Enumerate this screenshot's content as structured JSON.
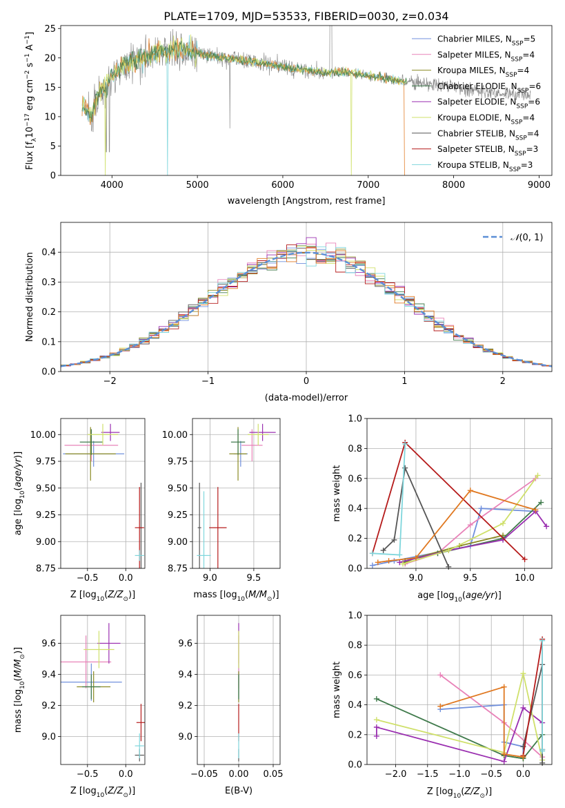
{
  "figure": {
    "title": "PLATE=1709, MJD=53533, FIBERID=0030, z=0.034"
  },
  "colors": {
    "Chabrier MILES": "#6f8fdc",
    "Salpeter MILES": "#e882b8",
    "Kroupa MILES": "#8a8a22",
    "Chabrier ELODIE": "#3f7a4b",
    "Salpeter ELODIE": "#9a2fb0",
    "Kroupa ELODIE": "#cfe06a",
    "Chabrier STELIB": "#555555",
    "Salpeter STELIB": "#b51a1a",
    "Kroupa STELIB": "#7fd6dc",
    "orange": "#e07820",
    "grey": "#8c8c8c",
    "grid": "#b0b0b0"
  },
  "chart_data": [
    {
      "id": "spectrum",
      "type": "line",
      "title": "PLATE=1709, MJD=53533, FIBERID=0030, z=0.034",
      "xlabel": "wavelength [Angstrom, rest frame]",
      "ylabel": "Flux [f_λ 10^-17 erg cm^-2 s^-1 A^-1]",
      "xlim": [
        3400,
        9150
      ],
      "ylim": [
        0,
        25.5
      ],
      "xticks": [
        4000,
        5000,
        6000,
        7000,
        8000,
        9000
      ],
      "yticks": [
        0,
        5,
        10,
        15,
        20,
        25
      ],
      "grid": false,
      "legend_position": "top-right",
      "legend": [
        "Chabrier MILES, N_SSP=5",
        "Salpeter MILES, N_SSP=4",
        "Kroupa MILES, N_SSP=4",
        "Chabrier ELODIE, N_SSP=6",
        "Salpeter ELODIE, N_SSP=6",
        "Kroupa ELODIE, N_SSP=4",
        "Chabrier STELIB, N_SSP=4",
        "Salpeter STELIB, N_SSP=3",
        "Kroupa STELIB, N_SSP=3"
      ],
      "data_envelope": {
        "x": [
          3680,
          3750,
          3850,
          4000,
          4200,
          4500,
          4800,
          5000,
          5300,
          5600,
          6000,
          6500,
          6800,
          7000,
          7400,
          7800,
          8200,
          8500,
          8800,
          8900
        ],
        "y": [
          12,
          10,
          14,
          17,
          19,
          21,
          21.5,
          20.8,
          20,
          19.5,
          18.5,
          17.5,
          17.5,
          17,
          16,
          15.5,
          14.5,
          14,
          13.8,
          13.5
        ]
      },
      "model_range": [
        3650,
        7450
      ]
    },
    {
      "id": "residual_hist",
      "type": "bar",
      "xlabel": "(data-model)/error",
      "ylabel": "Normed distribution",
      "xlim": [
        -2.5,
        2.5
      ],
      "ylim": [
        0,
        0.5
      ],
      "xticks": [
        -2,
        -1,
        0,
        1,
        2
      ],
      "yticks": [
        0.0,
        0.1,
        0.2,
        0.3,
        0.4
      ],
      "grid": true,
      "legend_position": "top-right",
      "legend": [
        "N(0,1)"
      ],
      "bin_width": 0.1
    },
    {
      "id": "age_vs_Z",
      "type": "scatter",
      "xlabel": "Z [log10(Z/Z☉)]",
      "ylabel": "age  [log10(age/yr)]",
      "xlim": [
        -0.85,
        0.25
      ],
      "ylim": [
        8.75,
        10.15
      ],
      "xticks": [
        -0.5,
        0.0
      ],
      "yticks": [
        8.75,
        9.0,
        9.25,
        9.5,
        9.75,
        10.0
      ],
      "grid": true,
      "points": [
        {
          "model": "Chabrier MILES",
          "x": -0.42,
          "xerr": 0.4,
          "y": 9.82,
          "yerr": 0.12
        },
        {
          "model": "Salpeter MILES",
          "x": -0.45,
          "xerr": 0.35,
          "y": 9.9,
          "yerr": 0.15
        },
        {
          "model": "Kroupa MILES",
          "x": -0.46,
          "xerr": 0.33,
          "y": 9.82,
          "yerr": 0.25
        },
        {
          "model": "Chabrier ELODIE",
          "x": -0.45,
          "xerr": 0.15,
          "y": 9.93,
          "yerr": 0.12
        },
        {
          "model": "Salpeter ELODIE",
          "x": -0.2,
          "xerr": 0.12,
          "y": 10.02,
          "yerr": 0.08
        },
        {
          "model": "Kroupa ELODIE",
          "x": -0.3,
          "xerr": 0.2,
          "y": 10.0,
          "yerr": 0.1
        },
        {
          "model": "Chabrier STELIB",
          "x": 0.2,
          "xerr": 0.02,
          "y": 9.13,
          "yerr": 0.42
        },
        {
          "model": "Salpeter STELIB",
          "x": 0.18,
          "xerr": 0.06,
          "y": 9.13,
          "yerr": 0.38
        },
        {
          "model": "Kroupa STELIB",
          "x": 0.18,
          "xerr": 0.06,
          "y": 8.87,
          "yerr": 0.05
        }
      ]
    },
    {
      "id": "age_vs_mass",
      "type": "scatter",
      "xlabel": "mass [log10(M/M☉)]",
      "ylabel": "",
      "xlim": [
        8.8,
        9.8
      ],
      "ylim": [
        8.75,
        10.15
      ],
      "xticks": [
        9.0,
        9.5
      ],
      "yticks": [
        8.75,
        9.0,
        9.25,
        9.5,
        9.75,
        10.0
      ],
      "grid": true,
      "points": [
        {
          "model": "Chabrier MILES",
          "x": 9.35,
          "xerr": 0.08,
          "y": 9.82,
          "yerr": 0.12
        },
        {
          "model": "Salpeter MILES",
          "x": 9.48,
          "xerr": 0.12,
          "y": 9.9,
          "yerr": 0.15
        },
        {
          "model": "Kroupa MILES",
          "x": 9.32,
          "xerr": 0.1,
          "y": 9.82,
          "yerr": 0.25
        },
        {
          "model": "Chabrier ELODIE",
          "x": 9.32,
          "xerr": 0.08,
          "y": 9.93,
          "yerr": 0.12
        },
        {
          "model": "Salpeter ELODIE",
          "x": 9.6,
          "xerr": 0.15,
          "y": 10.02,
          "yerr": 0.08
        },
        {
          "model": "Kroupa ELODIE",
          "x": 9.55,
          "xerr": 0.12,
          "y": 10.0,
          "yerr": 0.1
        },
        {
          "model": "Chabrier STELIB",
          "x": 8.88,
          "xerr": 0.02,
          "y": 9.13,
          "yerr": 0.42
        },
        {
          "model": "Salpeter STELIB",
          "x": 9.09,
          "xerr": 0.1,
          "y": 9.13,
          "yerr": 0.38
        },
        {
          "model": "Kroupa STELIB",
          "x": 8.93,
          "xerr": 0.08,
          "y": 8.87,
          "yerr": 0.6
        }
      ]
    },
    {
      "id": "weight_vs_age",
      "type": "line",
      "xlabel": "age  [log10(age/yr)]",
      "ylabel": "mass weight",
      "xlim": [
        8.55,
        10.25
      ],
      "ylim": [
        0,
        1.0
      ],
      "xticks": [
        9.0,
        9.5,
        10.0
      ],
      "yticks": [
        0.0,
        0.2,
        0.4,
        0.6,
        0.8,
        1.0
      ],
      "grid": true,
      "series": [
        {
          "model": "Chabrier MILES",
          "x": [
            8.6,
            8.8,
            9.5,
            9.6,
            10.1
          ],
          "y": [
            0.02,
            0.05,
            0.15,
            0.4,
            0.38
          ]
        },
        {
          "model": "Salpeter MILES",
          "x": [
            8.9,
            9.2,
            9.5,
            10.1
          ],
          "y": [
            0.03,
            0.1,
            0.29,
            0.6
          ]
        },
        {
          "model": "Kroupa MILES",
          "x": [
            8.9,
            9.0,
            9.4,
            9.8
          ],
          "y": [
            0.04,
            0.07,
            0.15,
            0.22
          ]
        },
        {
          "model": "Chabrier ELODIE",
          "x": [
            8.9,
            9.2,
            9.8,
            10.15
          ],
          "y": [
            0.05,
            0.1,
            0.2,
            0.44
          ]
        },
        {
          "model": "Salpeter ELODIE",
          "x": [
            8.85,
            9.3,
            9.8,
            10.1,
            10.2
          ],
          "y": [
            0.04,
            0.12,
            0.19,
            0.38,
            0.28
          ]
        },
        {
          "model": "Kroupa ELODIE",
          "x": [
            8.88,
            9.3,
            9.8,
            10.12
          ],
          "y": [
            0.03,
            0.12,
            0.3,
            0.62
          ]
        },
        {
          "model": "Chabrier STELIB",
          "x": [
            8.7,
            8.8,
            8.9,
            9.3
          ],
          "y": [
            0.12,
            0.19,
            0.67,
            0.01
          ]
        },
        {
          "model": "Salpeter STELIB",
          "x": [
            8.6,
            8.9,
            10.0
          ],
          "y": [
            0.1,
            0.84,
            0.06
          ]
        },
        {
          "model": "Kroupa STELIB",
          "x": [
            8.6,
            8.85,
            8.9
          ],
          "y": [
            0.1,
            0.09,
            0.83
          ]
        },
        {
          "model": "orange",
          "x": [
            8.65,
            8.75,
            9.0,
            9.5,
            10.1
          ],
          "y": [
            0.04,
            0.05,
            0.07,
            0.52,
            0.39
          ]
        }
      ]
    },
    {
      "id": "mass_vs_Z",
      "type": "scatter",
      "xlabel": "Z [log10(Z/Z☉)]",
      "ylabel": "mass [log10(M/M☉)]",
      "xlim": [
        -0.85,
        0.25
      ],
      "ylim": [
        8.82,
        9.78
      ],
      "xticks": [
        -0.5,
        0.0
      ],
      "yticks": [
        9.0,
        9.2,
        9.4,
        9.6
      ],
      "grid": true,
      "points": [
        {
          "model": "Chabrier MILES",
          "x": -0.45,
          "xerr": 0.4,
          "y": 9.35,
          "yerr": 0.12
        },
        {
          "model": "Salpeter MILES",
          "x": -0.52,
          "xerr": 0.33,
          "y": 9.48,
          "yerr": 0.17
        },
        {
          "model": "Kroupa MILES",
          "x": -0.42,
          "xerr": 0.22,
          "y": 9.32,
          "yerr": 0.1
        },
        {
          "model": "Chabrier ELODIE",
          "x": -0.45,
          "xerr": 0.12,
          "y": 9.32,
          "yerr": 0.08
        },
        {
          "model": "Salpeter ELODIE",
          "x": -0.22,
          "xerr": 0.15,
          "y": 9.6,
          "yerr": 0.13
        },
        {
          "model": "Kroupa ELODIE",
          "x": -0.35,
          "xerr": 0.2,
          "y": 9.56,
          "yerr": 0.12
        },
        {
          "model": "Chabrier STELIB",
          "x": 0.18,
          "xerr": 0.06,
          "y": 8.88,
          "yerr": 0.04
        },
        {
          "model": "Salpeter STELIB",
          "x": 0.2,
          "xerr": 0.06,
          "y": 9.09,
          "yerr": 0.12
        },
        {
          "model": "Kroupa STELIB",
          "x": 0.18,
          "xerr": 0.06,
          "y": 8.94,
          "yerr": 0.08
        }
      ]
    },
    {
      "id": "mass_vs_EBV",
      "type": "scatter",
      "xlabel": "E(B-V)",
      "ylabel": "",
      "xlim": [
        -0.06,
        0.06
      ],
      "ylim": [
        8.82,
        9.78
      ],
      "xticks": [
        -0.05,
        0.0,
        0.05
      ],
      "xticklabels": [
        "−0.05",
        "0.00",
        "0.05"
      ],
      "yticks": [
        9.0,
        9.2,
        9.4,
        9.6
      ],
      "grid": true,
      "points": [
        {
          "model": "Chabrier MILES",
          "x": 0.0,
          "y": 9.35,
          "yerr": 0.12
        },
        {
          "model": "Salpeter MILES",
          "x": 0.0,
          "y": 9.48,
          "yerr": 0.17
        },
        {
          "model": "Kroupa MILES",
          "x": 0.0,
          "y": 9.32,
          "yerr": 0.1
        },
        {
          "model": "Chabrier ELODIE",
          "x": 0.0,
          "y": 9.32,
          "yerr": 0.08
        },
        {
          "model": "Salpeter ELODIE",
          "x": 0.0,
          "y": 9.6,
          "yerr": 0.13
        },
        {
          "model": "Kroupa ELODIE",
          "x": 0.0,
          "y": 9.56,
          "yerr": 0.12
        },
        {
          "model": "Chabrier STELIB",
          "x": 0.0,
          "y": 8.88,
          "yerr": 0.04
        },
        {
          "model": "Salpeter STELIB",
          "x": 0.0,
          "y": 9.09,
          "yerr": 0.12
        },
        {
          "model": "Kroupa STELIB",
          "x": 0.0,
          "y": 8.94,
          "yerr": 0.08
        }
      ]
    },
    {
      "id": "weight_vs_Z",
      "type": "line",
      "xlabel": "Z [log10(Z/Z☉)]",
      "ylabel": "mass weight",
      "xlim": [
        -2.45,
        0.45
      ],
      "ylim": [
        0,
        1.0
      ],
      "xticks": [
        -2.0,
        -1.5,
        -1.0,
        -0.5,
        0.0
      ],
      "yticks": [
        0.0,
        0.2,
        0.4,
        0.6,
        0.8,
        1.0
      ],
      "grid": true,
      "series": [
        {
          "model": "Chabrier MILES",
          "x": [
            -1.3,
            -0.3,
            -0.3,
            0.0,
            0.0
          ],
          "y": [
            0.37,
            0.4,
            0.15,
            0.12,
            0.05
          ]
        },
        {
          "model": "Salpeter MILES",
          "x": [
            -1.3,
            -0.3,
            0.3
          ],
          "y": [
            0.6,
            0.28,
            0.05
          ]
        },
        {
          "model": "Kroupa MILES",
          "x": [
            -0.3,
            0.0
          ],
          "y": [
            0.06,
            0.04
          ]
        },
        {
          "model": "Chabrier ELODIE",
          "x": [
            -2.3,
            -0.3,
            0.0,
            0.3
          ],
          "y": [
            0.44,
            0.06,
            0.04,
            0.2
          ]
        },
        {
          "model": "Salpeter ELODIE",
          "x": [
            -2.3,
            -2.3,
            -0.3,
            0.0,
            0.3
          ],
          "y": [
            0.19,
            0.25,
            0.02,
            0.38,
            0.28
          ]
        },
        {
          "model": "Kroupa ELODIE",
          "x": [
            -2.3,
            -0.3,
            0.0,
            0.3
          ],
          "y": [
            0.3,
            0.08,
            0.61,
            0.03
          ]
        },
        {
          "model": "Chabrier STELIB",
          "x": [
            0.0,
            0.3,
            0.3
          ],
          "y": [
            0.12,
            0.67,
            0.01
          ]
        },
        {
          "model": "Salpeter STELIB",
          "x": [
            0.0,
            0.3,
            0.3
          ],
          "y": [
            0.06,
            0.84,
            0.1
          ]
        },
        {
          "model": "Kroupa STELIB",
          "x": [
            0.3,
            0.3,
            0.3
          ],
          "y": [
            0.09,
            0.83,
            0.1
          ]
        },
        {
          "model": "orange",
          "x": [
            -1.3,
            -0.3,
            -0.3,
            0.0
          ],
          "y": [
            0.39,
            0.52,
            0.07,
            0.05
          ]
        }
      ]
    }
  ]
}
